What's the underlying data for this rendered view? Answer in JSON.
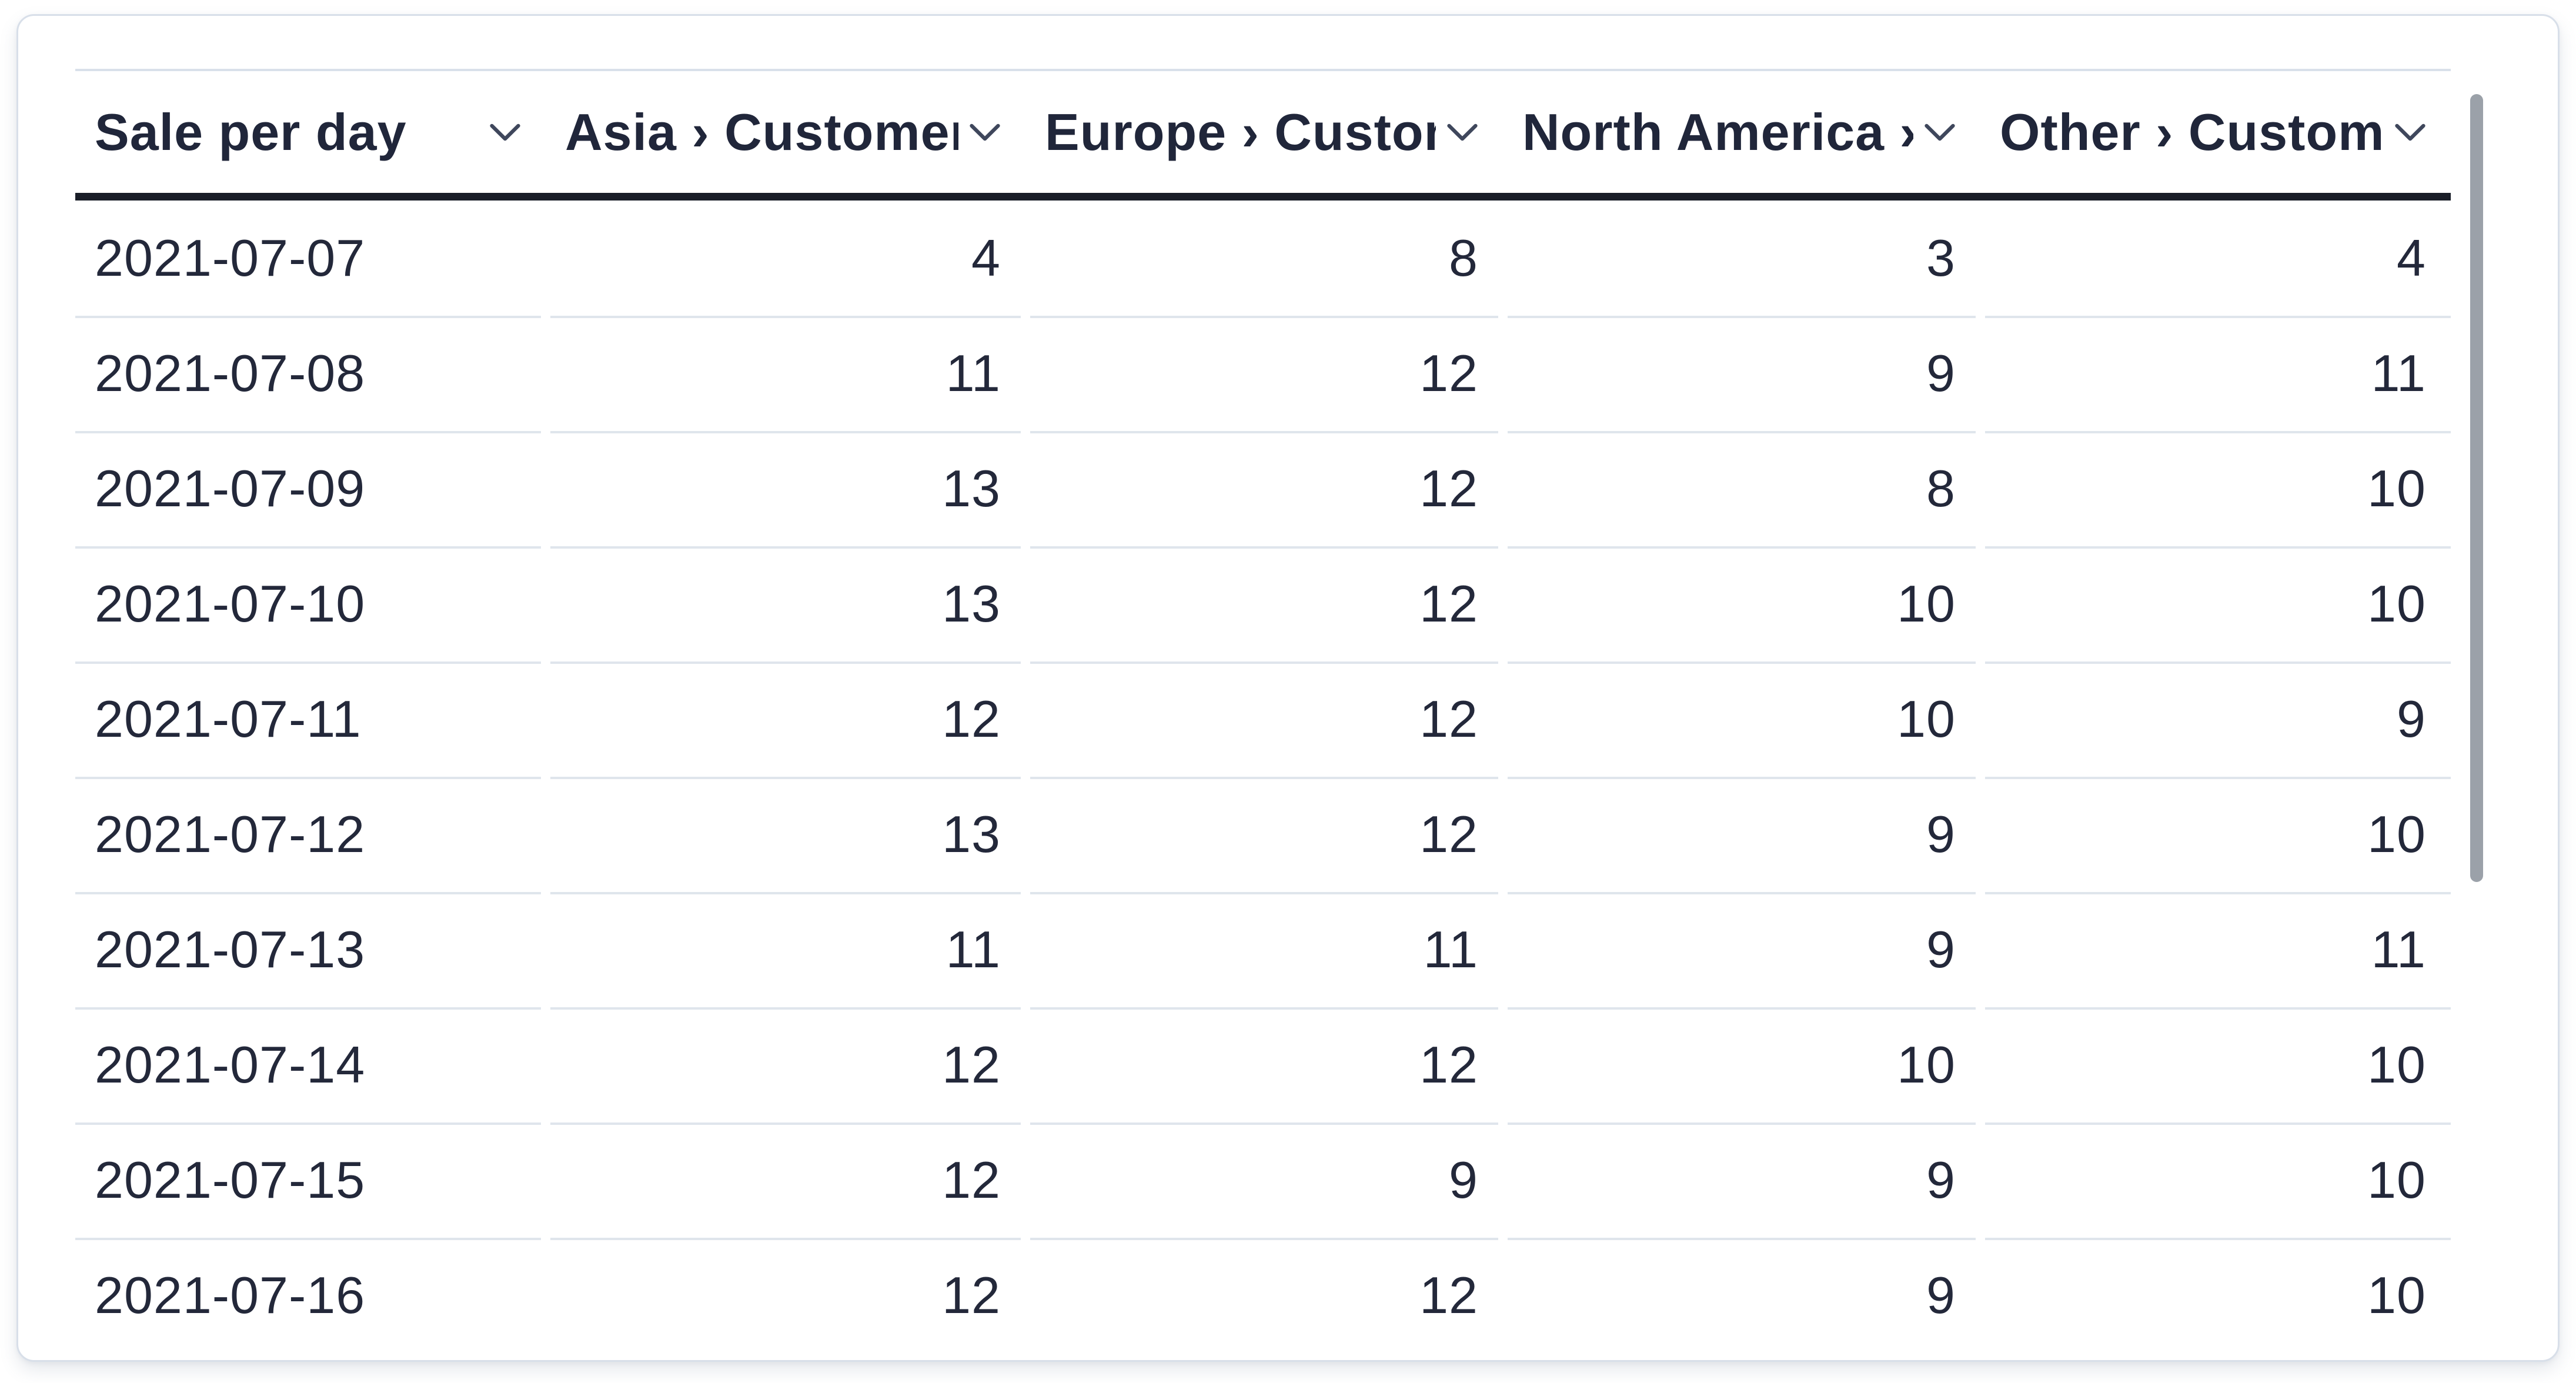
{
  "card": {
    "type": "table-card",
    "scrollbar_visible": true
  },
  "table": {
    "columns": [
      {
        "label": "Sale per day",
        "label_visible": "Sale per day",
        "align": "left",
        "sortable": true
      },
      {
        "label": "Asia › Customers",
        "label_visible": "Asia › Customer",
        "align": "right",
        "sortable": true
      },
      {
        "label": "Europe › Customers",
        "label_visible": "Europe › Custom",
        "align": "right",
        "sortable": true
      },
      {
        "label": "North America › Customers",
        "label_visible": "North America ›",
        "align": "right",
        "sortable": true
      },
      {
        "label": "Other › Customers",
        "label_visible": "Other › Custome",
        "align": "right",
        "sortable": true
      }
    ],
    "rows": [
      [
        "2021-07-07",
        "4",
        "8",
        "3",
        "4"
      ],
      [
        "2021-07-08",
        "11",
        "12",
        "9",
        "11"
      ],
      [
        "2021-07-09",
        "13",
        "12",
        "8",
        "10"
      ],
      [
        "2021-07-10",
        "13",
        "12",
        "10",
        "10"
      ],
      [
        "2021-07-11",
        "12",
        "12",
        "10",
        "9"
      ],
      [
        "2021-07-12",
        "13",
        "12",
        "9",
        "10"
      ],
      [
        "2021-07-13",
        "11",
        "11",
        "9",
        "11"
      ],
      [
        "2021-07-14",
        "12",
        "12",
        "10",
        "10"
      ],
      [
        "2021-07-15",
        "12",
        "9",
        "9",
        "10"
      ],
      [
        "2021-07-16",
        "12",
        "12",
        "9",
        "10"
      ]
    ]
  },
  "chart_data": {
    "type": "table",
    "title": "Sale per day",
    "columns": [
      "Sale per day",
      "Asia › Customers",
      "Europe › Customers",
      "North America › Customers",
      "Other › Customers"
    ],
    "rows": [
      [
        "2021-07-07",
        4,
        8,
        3,
        4
      ],
      [
        "2021-07-08",
        11,
        12,
        9,
        11
      ],
      [
        "2021-07-09",
        13,
        12,
        8,
        10
      ],
      [
        "2021-07-10",
        13,
        12,
        10,
        10
      ],
      [
        "2021-07-11",
        12,
        12,
        10,
        9
      ],
      [
        "2021-07-12",
        13,
        12,
        9,
        10
      ],
      [
        "2021-07-13",
        11,
        11,
        9,
        11
      ],
      [
        "2021-07-14",
        12,
        12,
        10,
        10
      ],
      [
        "2021-07-15",
        12,
        9,
        9,
        10
      ],
      [
        "2021-07-16",
        12,
        12,
        9,
        10
      ]
    ]
  },
  "icons": {
    "column_menu": "chevron-down-icon"
  },
  "colors": {
    "page_bg": "#ffffff",
    "card_bg": "#ffffff",
    "card_border": "#d8dfe9",
    "text": "#23283a",
    "header_text": "#20263a",
    "header_underline": "#191d27",
    "table_top_border": "#d9e0ea",
    "row_divider": "#dfe5ec",
    "chevron": "#3f475c",
    "scrollbar_thumb": "#9ba1a9"
  }
}
